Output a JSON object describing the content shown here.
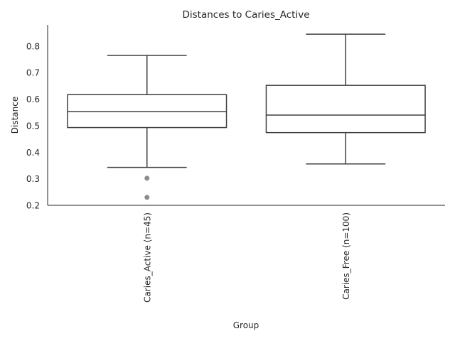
{
  "chart_data": {
    "type": "box",
    "title": "Distances to Caries_Active",
    "xlabel": "Group",
    "ylabel": "Distance",
    "ylim": [
      0.2,
      0.88
    ],
    "yticks": [
      "0.2",
      "0.3",
      "0.4",
      "0.5",
      "0.6",
      "0.7",
      "0.8"
    ],
    "grid": false,
    "categories": [
      "Caries_Active (n=45)",
      "Caries_Free (n=100)"
    ],
    "boxes": [
      {
        "category": "Caries_Active (n=45)",
        "whisker_low": 0.343,
        "q1": 0.493,
        "median": 0.553,
        "q3": 0.617,
        "whisker_high": 0.765,
        "outliers": [
          0.302,
          0.23
        ]
      },
      {
        "category": "Caries_Free (n=100)",
        "whisker_low": 0.356,
        "q1": 0.474,
        "median": 0.54,
        "q3": 0.652,
        "whisker_high": 0.845,
        "outliers": []
      }
    ]
  },
  "colors": {
    "box_line": "#3f3f3f",
    "outlier": "#8c8c8c",
    "axis": "#262626"
  }
}
